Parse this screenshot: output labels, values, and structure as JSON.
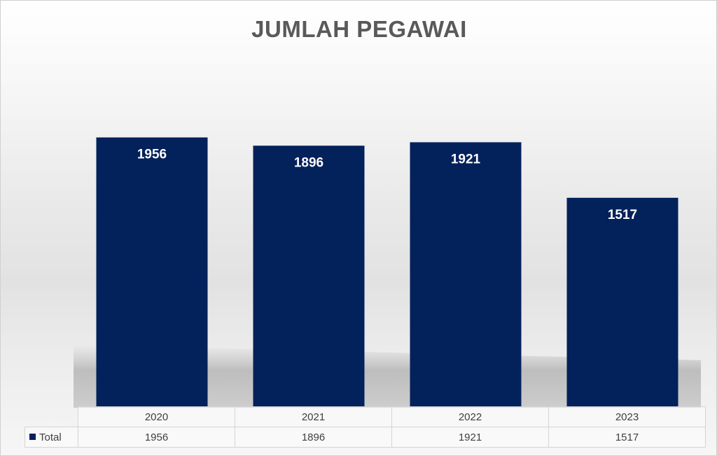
{
  "colors": {
    "bar": "#03215B",
    "label": "#FFFFFF"
  },
  "chart_data": {
    "type": "bar",
    "title": "JUMLAH PEGAWAI",
    "categories": [
      "2020",
      "2021",
      "2022",
      "2023"
    ],
    "series": [
      {
        "name": "Total",
        "values": [
          1956,
          1896,
          1921,
          1517
        ]
      }
    ],
    "ylim": [
      0,
      2035
    ],
    "grid": false,
    "data_labels": true,
    "legend": "data-table"
  }
}
